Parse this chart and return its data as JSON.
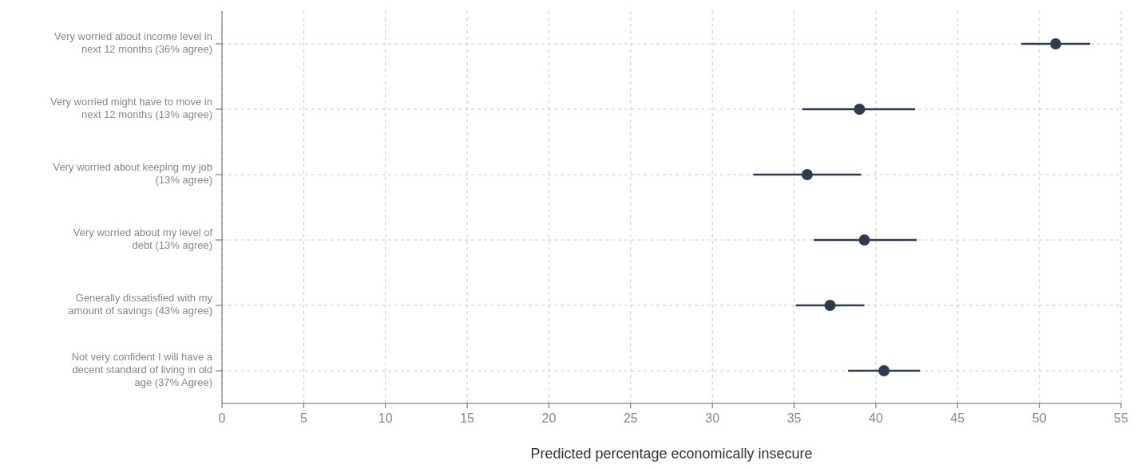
{
  "chart_data": {
    "type": "scatter",
    "orientation": "horizontal",
    "xlabel": "Predicted percentage economically insecure",
    "categories": [
      "Very worried about income level in next 12 months (36% agree)",
      "Very worried might have to move in next 12 months (13% agree)",
      "Very worried about keeping my job (13% agree)",
      "Very worried about my level of debt (13% agree)",
      "Generally dissatisfied with my amount of savings (43% agree)",
      "Not very confident I will have a decent standard of living in old age (37% Agree)"
    ],
    "values": [
      51.0,
      39.0,
      35.8,
      39.3,
      37.2,
      40.5
    ],
    "errors": [
      [
        48.9,
        53.1
      ],
      [
        35.5,
        42.4
      ],
      [
        32.5,
        39.1
      ],
      [
        36.2,
        42.5
      ],
      [
        35.1,
        39.3
      ],
      [
        38.3,
        42.7
      ]
    ],
    "color": "#2e3b4e",
    "marker": "circle",
    "grid": true,
    "xlim": [
      0,
      55
    ],
    "xticks": [
      0,
      5,
      10,
      15,
      20,
      25,
      30,
      35,
      40,
      45,
      50,
      55
    ]
  }
}
